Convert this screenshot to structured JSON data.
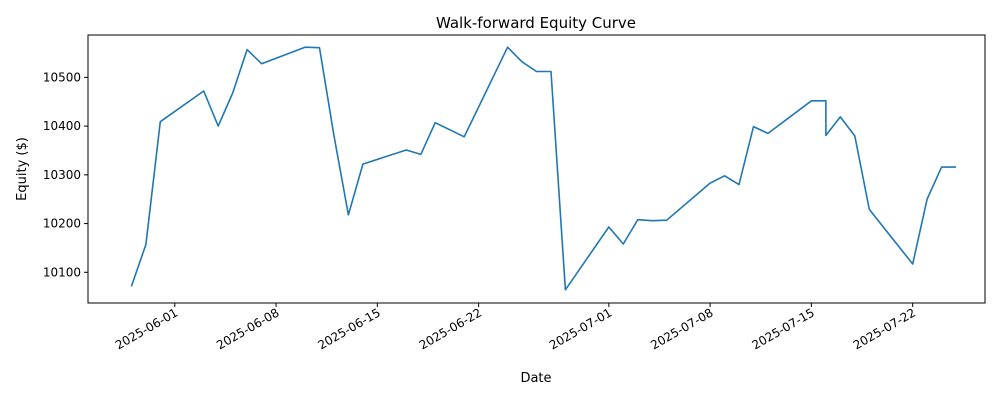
{
  "chart_data": {
    "type": "line",
    "title": "Walk-forward Equity Curve",
    "xlabel": "Date",
    "ylabel": "Equity ($)",
    "grid": false,
    "legend": "none",
    "xlim": [
      "2025-05-26",
      "2025-07-27"
    ],
    "ylim": [
      10037,
      10587
    ],
    "x_ticks": [
      "2025-06-01",
      "2025-06-08",
      "2025-06-15",
      "2025-06-22",
      "2025-07-01",
      "2025-07-08",
      "2025-07-15",
      "2025-07-22"
    ],
    "y_ticks": [
      10100,
      10200,
      10300,
      10400,
      10500
    ],
    "series": [
      {
        "color": "#1f77b4",
        "x": [
          "2025-05-29",
          "2025-05-30",
          "2025-05-31",
          "2025-06-03",
          "2025-06-04",
          "2025-06-05",
          "2025-06-06",
          "2025-06-07",
          "2025-06-10",
          "2025-06-11",
          "2025-06-12",
          "2025-06-13",
          "2025-06-14",
          "2025-06-17",
          "2025-06-18",
          "2025-06-19",
          "2025-06-21",
          "2025-06-24",
          "2025-06-25",
          "2025-06-26",
          "2025-06-27",
          "2025-06-28",
          "2025-07-01",
          "2025-07-02",
          "2025-07-03",
          "2025-07-04",
          "2025-07-05",
          "2025-07-08",
          "2025-07-09",
          "2025-07-10",
          "2025-07-11",
          "2025-07-12",
          "2025-07-15",
          "2025-07-16",
          "2025-07-16",
          "2025-07-17",
          "2025-07-18",
          "2025-07-19",
          "2025-07-22",
          "2025-07-23",
          "2025-07-24",
          "2025-07-25"
        ],
        "values": [
          10071,
          10157,
          10409,
          10472,
          10400,
          10468,
          10557,
          10528,
          10562,
          10561,
          10380,
          10218,
          10322,
          10351,
          10342,
          10407,
          10378,
          10562,
          10532,
          10512,
          10512,
          10064,
          10193,
          10158,
          10208,
          10206,
          10207,
          10283,
          10298,
          10280,
          10399,
          10385,
          10452,
          10452,
          10381,
          10419,
          10380,
          10229,
          10117,
          10250,
          10316,
          10316
        ]
      }
    ]
  }
}
